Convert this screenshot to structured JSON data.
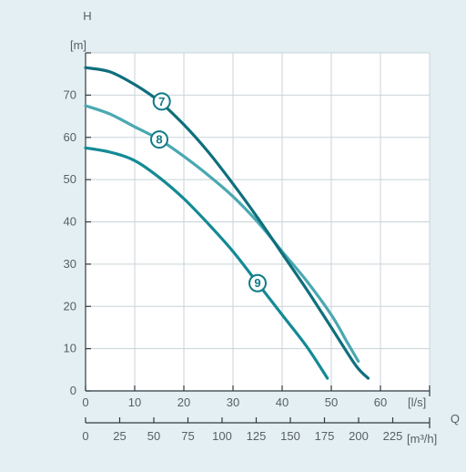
{
  "chart_data": {
    "type": "line",
    "ylabel": "H",
    "yunit": "[m]",
    "xlabel": "Q",
    "x_unit_ls": "[l/s]",
    "x_unit_m3h": "[m³/h]",
    "ylim": [
      0,
      80
    ],
    "xlim_ls": [
      0,
      70
    ],
    "y_ticks": [
      0,
      10,
      20,
      30,
      40,
      50,
      60,
      70
    ],
    "x_ticks_ls": [
      0,
      10,
      20,
      30,
      40,
      50,
      60
    ],
    "x_ticks_m3h": [
      0,
      25,
      50,
      75,
      100,
      125,
      150,
      175,
      200,
      225
    ],
    "grid": true,
    "series": [
      {
        "name": "7",
        "color": "#0f6f7c",
        "points": [
          [
            0,
            76.5
          ],
          [
            5,
            75.5
          ],
          [
            10,
            72.5
          ],
          [
            15,
            68.5
          ],
          [
            20,
            63
          ],
          [
            25,
            56.5
          ],
          [
            30,
            49
          ],
          [
            35,
            41
          ],
          [
            40,
            32.5
          ],
          [
            45,
            24
          ],
          [
            50,
            15
          ],
          [
            55,
            6
          ],
          [
            57.5,
            3
          ]
        ]
      },
      {
        "name": "8",
        "color": "#4aa8b2",
        "points": [
          [
            0,
            67.5
          ],
          [
            5,
            65.5
          ],
          [
            10,
            62.5
          ],
          [
            15,
            59.5
          ],
          [
            20,
            55.5
          ],
          [
            25,
            51
          ],
          [
            30,
            46
          ],
          [
            35,
            40
          ],
          [
            40,
            33
          ],
          [
            45,
            26
          ],
          [
            50,
            18
          ],
          [
            53,
            12
          ],
          [
            55.5,
            7
          ]
        ]
      },
      {
        "name": "9",
        "color": "#138a95",
        "points": [
          [
            0,
            57.5
          ],
          [
            5,
            56.5
          ],
          [
            10,
            54.5
          ],
          [
            15,
            50.5
          ],
          [
            20,
            45.5
          ],
          [
            25,
            39.5
          ],
          [
            30,
            33
          ],
          [
            35,
            25.5
          ],
          [
            40,
            18
          ],
          [
            45,
            10.5
          ],
          [
            49.2,
            3
          ]
        ]
      }
    ],
    "curve_labels": [
      {
        "text": "7",
        "x": 15.5,
        "y": 68.5
      },
      {
        "text": "8",
        "x": 15,
        "y": 59.5
      },
      {
        "text": "9",
        "x": 35,
        "y": 25.5
      }
    ]
  }
}
